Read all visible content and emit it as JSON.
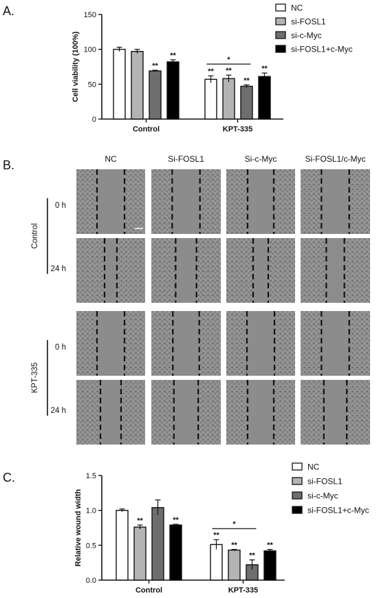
{
  "panels": {
    "a": "A.",
    "b": "B.",
    "c": "C."
  },
  "colors": {
    "NC": "#ffffff",
    "si-FOSL1": "#b4b4b4",
    "si-c-Myc": "#6e6e6e",
    "si-FOSL1+c-Myc": "#000000"
  },
  "chart_data": [
    {
      "type": "bar",
      "panel": "A.",
      "ylabel": "Cell viability (100%)",
      "xlabel": "",
      "ylim": [
        0,
        150
      ],
      "yticks": [
        "0",
        "50",
        "100",
        "150"
      ],
      "categories": [
        "Control",
        "KPT-335"
      ],
      "series": [
        {
          "name": "NC",
          "values": [
            100,
            57
          ],
          "errors": [
            3,
            5
          ],
          "sig": [
            "",
            "**"
          ]
        },
        {
          "name": "si-FOSL1",
          "values": [
            97,
            58
          ],
          "errors": [
            3,
            5
          ],
          "sig": [
            "",
            "**"
          ]
        },
        {
          "name": "si-c-Myc",
          "values": [
            69,
            47
          ],
          "errors": [
            1,
            2
          ],
          "sig": [
            "**",
            "**"
          ]
        },
        {
          "name": "si-FOSL1+c-Myc",
          "values": [
            82,
            61
          ],
          "errors": [
            3,
            5
          ],
          "sig": [
            "**",
            "**"
          ]
        }
      ],
      "bracket": {
        "text": "*"
      },
      "legend": [
        "NC",
        "si-FOSL1",
        "si-c-Myc",
        "si-FOSL1+c-Myc"
      ],
      "legend_position": "top-right"
    },
    {
      "type": "bar",
      "panel": "C.",
      "ylabel": "Relative wound width",
      "xlabel": "",
      "ylim": [
        0,
        1.5
      ],
      "yticks": [
        "0.0",
        "0.5",
        "1.0",
        "1.5"
      ],
      "categories": [
        "Control",
        "KPT-335"
      ],
      "series": [
        {
          "name": "NC",
          "values": [
            1.0,
            0.51
          ],
          "errors": [
            0.02,
            0.07
          ],
          "sig": [
            "",
            "**"
          ]
        },
        {
          "name": "si-FOSL1",
          "values": [
            0.76,
            0.43
          ],
          "errors": [
            0.03,
            0.01
          ],
          "sig": [
            "**",
            "**"
          ]
        },
        {
          "name": "si-c-Myc",
          "values": [
            1.04,
            0.22
          ],
          "errors": [
            0.11,
            0.07
          ],
          "sig": [
            "",
            "**"
          ]
        },
        {
          "name": "si-FOSL1+c-Myc",
          "values": [
            0.79,
            0.42
          ],
          "errors": [
            0.01,
            0.02
          ],
          "sig": [
            "**",
            "**"
          ]
        }
      ],
      "bracket": {
        "text": "*"
      },
      "legend": [
        "NC",
        "si-FOSL1",
        "si-c-Myc",
        "si-FOSL1+c-Myc"
      ],
      "legend_position": "top-right"
    }
  ],
  "wound_images": {
    "columns": [
      "NC",
      "Si-FOSL1",
      "Si-c-Myc",
      "Si-FOSL1/c-Myc"
    ],
    "groups": [
      {
        "name": "Control",
        "times": [
          "0 h",
          "24 h"
        ]
      },
      {
        "name": "KPT-335",
        "times": [
          "0 h",
          "24 h"
        ]
      }
    ],
    "wound_gaps": [
      [
        0.4,
        0.4,
        0.38,
        0.4
      ],
      [
        0.18,
        0.3,
        0.22,
        0.26
      ],
      [
        0.4,
        0.38,
        0.4,
        0.4
      ],
      [
        0.3,
        0.35,
        0.38,
        0.33
      ]
    ]
  }
}
